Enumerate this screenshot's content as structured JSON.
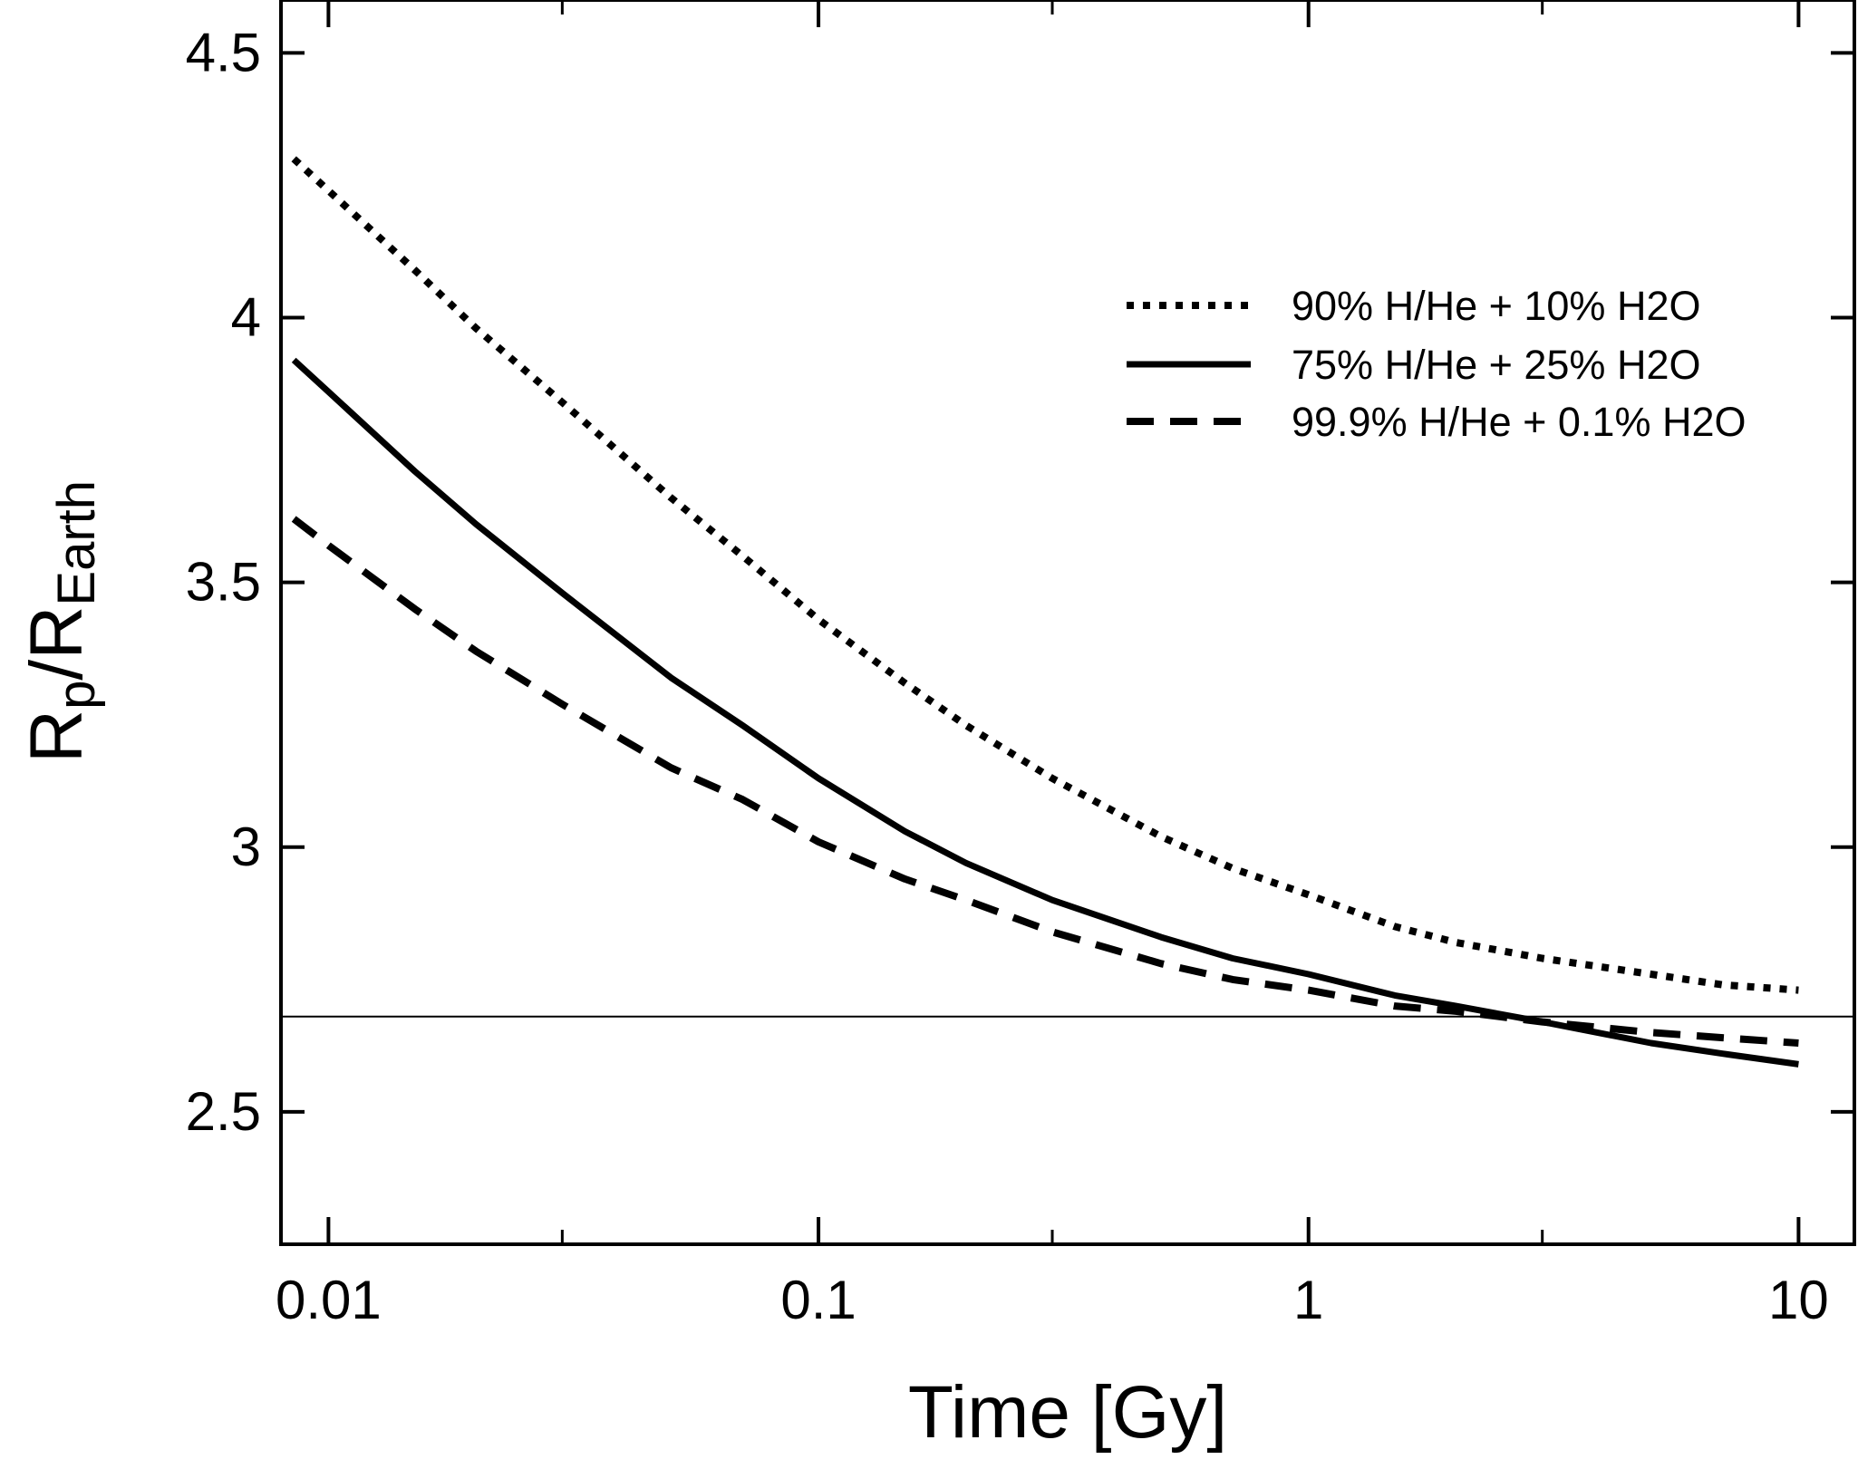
{
  "chart_data": {
    "type": "line",
    "title": "",
    "xlabel": "Time [Gy]",
    "ylabel": {
      "base": "R",
      "sub1": "p",
      "slash": "/R",
      "sub2": "Earth"
    },
    "xscale": "log",
    "xlim": [
      0.008,
      13
    ],
    "ylim": [
      2.25,
      4.6
    ],
    "x_ticks": [
      {
        "value": 0.01,
        "label": "0.01"
      },
      {
        "value": 0.1,
        "label": "0.1"
      },
      {
        "value": 1,
        "label": "1"
      },
      {
        "value": 10,
        "label": "10"
      }
    ],
    "y_ticks": [
      {
        "value": 2.5,
        "label": "2.5"
      },
      {
        "value": 3,
        "label": "3"
      },
      {
        "value": 3.5,
        "label": "3.5"
      },
      {
        "value": 4,
        "label": "4"
      },
      {
        "value": 4.5,
        "label": "4.5"
      }
    ],
    "reference_line": {
      "y": 2.68
    },
    "legend_position": "top-right",
    "series": [
      {
        "name": "90% H/He + 10% H2O",
        "style": "dotted",
        "x": [
          0.0085,
          0.01,
          0.015,
          0.02,
          0.03,
          0.05,
          0.07,
          0.1,
          0.15,
          0.2,
          0.3,
          0.5,
          0.7,
          1,
          1.5,
          2,
          3,
          5,
          7,
          10
        ],
        "y": [
          4.3,
          4.24,
          4.09,
          3.98,
          3.84,
          3.66,
          3.55,
          3.43,
          3.31,
          3.23,
          3.13,
          3.02,
          2.96,
          2.91,
          2.85,
          2.82,
          2.79,
          2.76,
          2.74,
          2.73
        ]
      },
      {
        "name": "75% H/He + 25% H2O",
        "style": "solid",
        "x": [
          0.0085,
          0.01,
          0.015,
          0.02,
          0.03,
          0.05,
          0.07,
          0.1,
          0.15,
          0.2,
          0.3,
          0.5,
          0.7,
          1,
          1.5,
          2,
          3,
          5,
          7,
          10
        ],
        "y": [
          3.92,
          3.86,
          3.71,
          3.61,
          3.48,
          3.32,
          3.23,
          3.13,
          3.03,
          2.97,
          2.9,
          2.83,
          2.79,
          2.76,
          2.72,
          2.7,
          2.67,
          2.63,
          2.61,
          2.59
        ]
      },
      {
        "name": "99.9% H/He + 0.1% H2O",
        "style": "dashed",
        "x": [
          0.0085,
          0.01,
          0.015,
          0.02,
          0.03,
          0.05,
          0.07,
          0.1,
          0.15,
          0.2,
          0.3,
          0.5,
          0.7,
          1,
          1.5,
          2,
          3,
          5,
          7,
          10
        ],
        "y": [
          3.62,
          3.57,
          3.45,
          3.37,
          3.27,
          3.15,
          3.09,
          3.01,
          2.94,
          2.9,
          2.84,
          2.78,
          2.75,
          2.73,
          2.7,
          2.69,
          2.67,
          2.65,
          2.64,
          2.63
        ]
      }
    ]
  }
}
